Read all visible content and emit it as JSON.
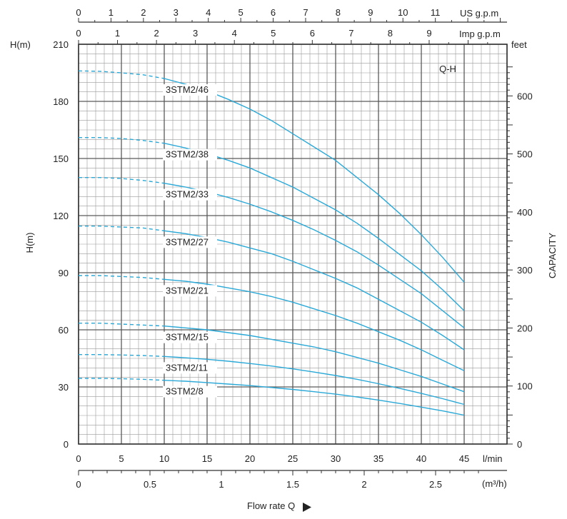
{
  "chart_data": {
    "type": "line",
    "title": "Q-H",
    "ylabel_left": "H(m)",
    "ylabel_left_top": "H(m)",
    "ylabel_right": "CAPACITY",
    "ylabel_right_top": "feet",
    "xlabel": "Flow rate Q",
    "x_unit_lmin": "l/min",
    "x_unit_m3h": "(m³/h)",
    "x_unit_usgpm": "US g.p.m",
    "x_unit_impgpm": "Imp g.p.m",
    "xlim": [
      0,
      50
    ],
    "ylim": [
      0,
      210
    ],
    "feet_lim": [
      0,
      689
    ],
    "y_ticks": [
      "0",
      "30",
      "60",
      "90",
      "120",
      "150",
      "180",
      "210"
    ],
    "feet_ticks": [
      "0",
      "100",
      "200",
      "300",
      "400",
      "500",
      "600"
    ],
    "lmin_ticks": [
      "0",
      "5",
      "10",
      "15",
      "20",
      "25",
      "30",
      "35",
      "40",
      "45"
    ],
    "m3h_ticks": [
      "0",
      "0.5",
      "1",
      "1.5",
      "2",
      "2.5"
    ],
    "usgpm_ticks": [
      "0",
      "1",
      "2",
      "3",
      "4",
      "5",
      "6",
      "7",
      "8",
      "9",
      "10",
      "11"
    ],
    "impgpm_ticks": [
      "0",
      "1",
      "2",
      "3",
      "4",
      "5",
      "6",
      "7",
      "8",
      "9"
    ],
    "dashed_until": 10,
    "x": [
      0,
      2.5,
      5,
      7.5,
      10,
      12.5,
      15,
      17.5,
      20,
      22.5,
      25,
      27.5,
      30,
      32.5,
      35,
      37.5,
      40,
      42.5,
      45
    ],
    "series": [
      {
        "name": "3STM2/46",
        "values": [
          196,
          195.8,
          195,
          194,
          192,
          189,
          185.5,
          181,
          176,
          170,
          163,
          156,
          149,
          140,
          131,
          121,
          110,
          98,
          85
        ]
      },
      {
        "name": "3STM2/38",
        "values": [
          161,
          161,
          160.5,
          159.5,
          158,
          155.5,
          152.5,
          149,
          145,
          140,
          135,
          129,
          123,
          116,
          108,
          99.5,
          91,
          81,
          70
        ]
      },
      {
        "name": "3STM2/33",
        "values": [
          140,
          140,
          139.5,
          138.5,
          137,
          135,
          132.5,
          129.5,
          126,
          122,
          117.5,
          112.5,
          107,
          101,
          94,
          86.5,
          79,
          70,
          61
        ]
      },
      {
        "name": "3STM2/27",
        "values": [
          114.5,
          114.5,
          114,
          113.5,
          112,
          110.5,
          108.5,
          106,
          103,
          100,
          96,
          91.5,
          87,
          82,
          76,
          70,
          64,
          57,
          49.5
        ]
      },
      {
        "name": "3STM2/21",
        "values": [
          88.5,
          88.5,
          88,
          87.5,
          86.5,
          85.5,
          84,
          82,
          80,
          77.5,
          74.5,
          71,
          67.5,
          63.5,
          59,
          54.5,
          49.5,
          44,
          38.5
        ]
      },
      {
        "name": "3STM2/15",
        "values": [
          63.5,
          63.5,
          63,
          62.5,
          62,
          61,
          60,
          58.5,
          57,
          55,
          53,
          51,
          48.5,
          45.5,
          42.5,
          39,
          35.5,
          31.5,
          27.5
        ]
      },
      {
        "name": "3STM2/11",
        "values": [
          47,
          47,
          46.8,
          46.5,
          46,
          45.3,
          44.5,
          43.5,
          42.3,
          41,
          39.5,
          37.8,
          36,
          34,
          31.7,
          29.2,
          26.6,
          23.8,
          20.8
        ]
      },
      {
        "name": "3STM2/8",
        "values": [
          34.5,
          34.5,
          34.3,
          34,
          33.5,
          33,
          32.3,
          31.5,
          30.7,
          29.7,
          28.7,
          27.5,
          26.2,
          24.7,
          23.1,
          21.3,
          19.4,
          17.4,
          15.2
        ]
      }
    ],
    "grid": true,
    "line_color": "#2aa9d8"
  }
}
